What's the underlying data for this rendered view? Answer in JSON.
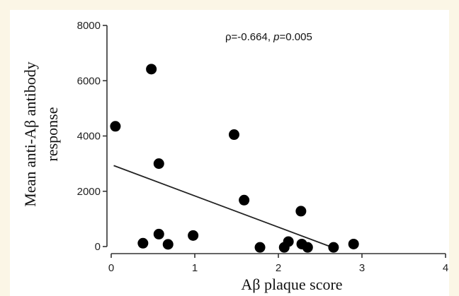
{
  "chart_data": {
    "type": "scatter",
    "xlabel": "Aβ plaque score",
    "ylabel_lines": [
      "Mean anti-Aβ antibody",
      "response"
    ],
    "xlim": [
      0,
      4
    ],
    "ylim": [
      0,
      8000
    ],
    "x_ticks": [
      0,
      1,
      2,
      3,
      4
    ],
    "y_ticks": [
      0,
      2000,
      4000,
      6000,
      8000
    ],
    "annotation": {
      "rho_label": "ρ=-0.664, ",
      "p_symbol": "p",
      "p_value": "=0.005"
    },
    "points": [
      {
        "x": 0.05,
        "y": 4350
      },
      {
        "x": 0.38,
        "y": 120
      },
      {
        "x": 0.48,
        "y": 6420
      },
      {
        "x": 0.57,
        "y": 3000
      },
      {
        "x": 0.57,
        "y": 450
      },
      {
        "x": 0.68,
        "y": 80
      },
      {
        "x": 0.98,
        "y": 400
      },
      {
        "x": 1.47,
        "y": 4050
      },
      {
        "x": 1.59,
        "y": 1680
      },
      {
        "x": 1.78,
        "y": -30
      },
      {
        "x": 2.07,
        "y": -30
      },
      {
        "x": 2.12,
        "y": 180
      },
      {
        "x": 2.27,
        "y": 1280
      },
      {
        "x": 2.28,
        "y": 90
      },
      {
        "x": 2.35,
        "y": -30
      },
      {
        "x": 2.66,
        "y": -30
      },
      {
        "x": 2.9,
        "y": 90
      }
    ],
    "regression_line": {
      "x1": 0.03,
      "y1": 2930,
      "x2": 2.62,
      "y2": 0
    },
    "grid": false,
    "legend": "none"
  },
  "colors": {
    "background": "#fbf6e6",
    "panel": "#ffffff",
    "marker": "#000000",
    "axis": "#333333"
  }
}
